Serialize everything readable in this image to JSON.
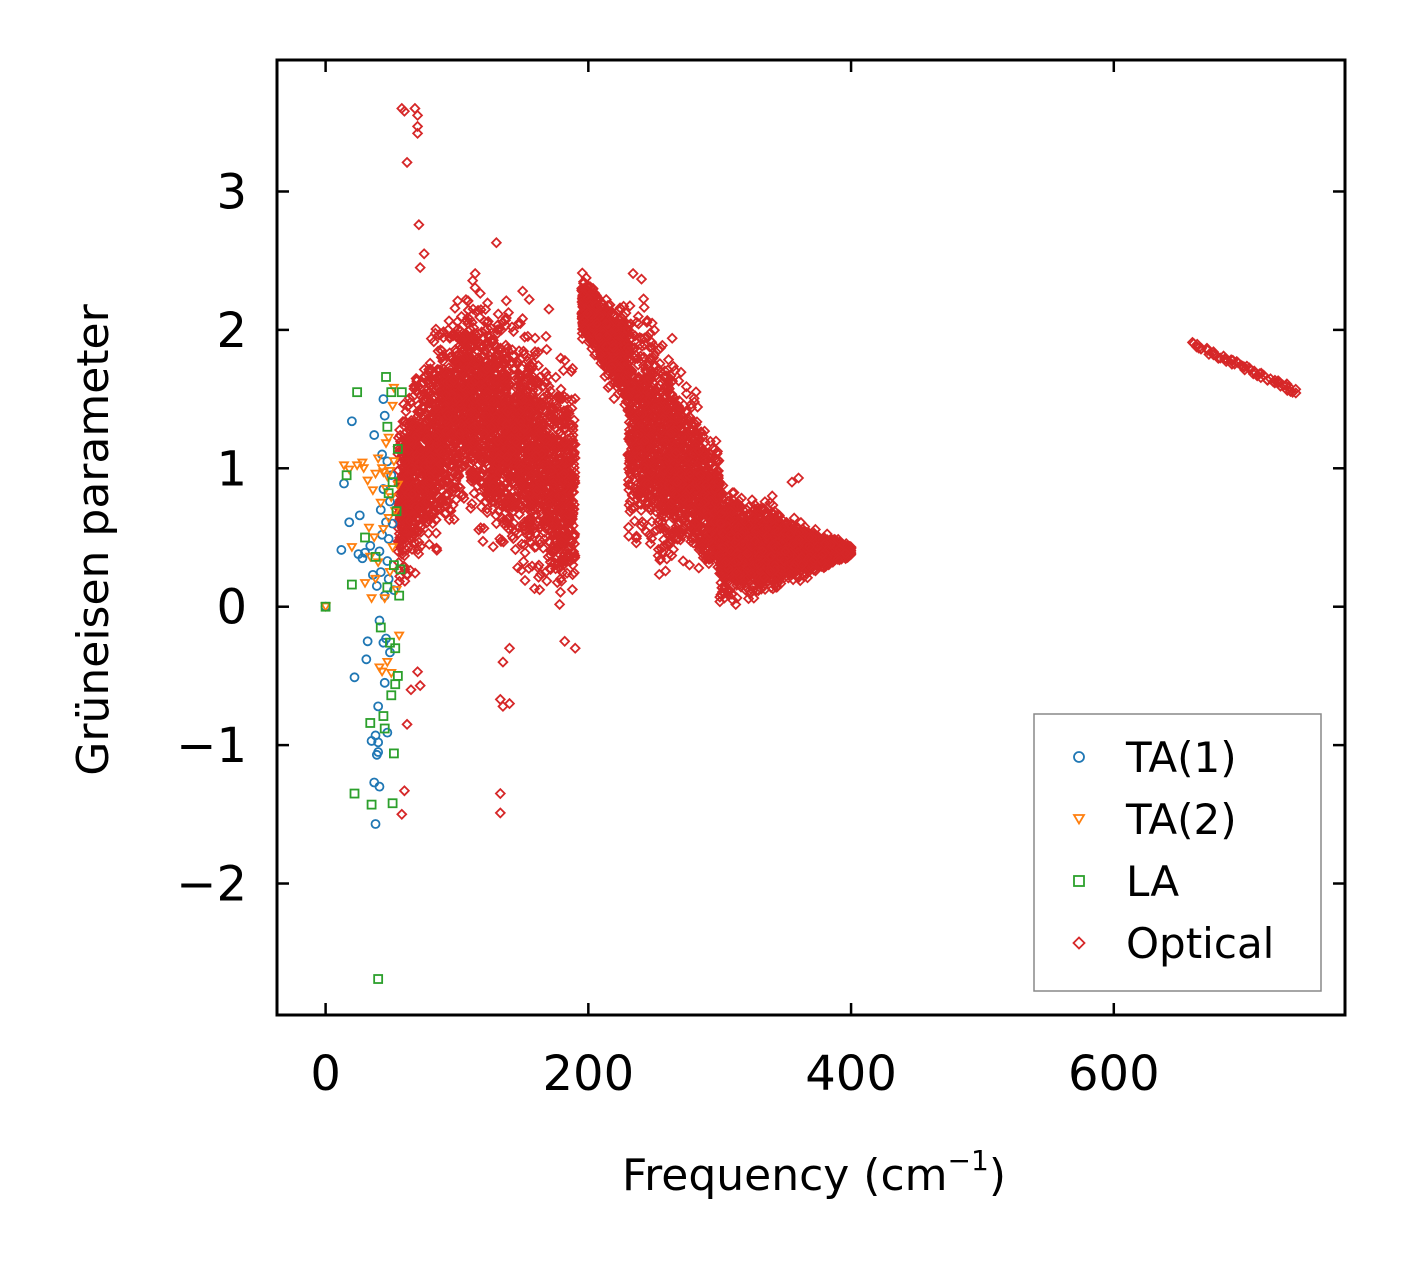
{
  "chart_data": {
    "type": "scatter",
    "title": "",
    "xlabel": "Frequency (cm",
    "xlabel_sup": "−1",
    "xlabel_close": ")",
    "ylabel": "Grüneisen parameter",
    "xlim": [
      -37,
      776
    ],
    "ylim": [
      -2.95,
      3.95
    ],
    "xticks": [
      0,
      200,
      400,
      600
    ],
    "xtick_labels": [
      "0",
      "200",
      "400",
      "600"
    ],
    "yticks": [
      -2,
      -1,
      0,
      1,
      2,
      3
    ],
    "ytick_labels": [
      "−2",
      "−1",
      "0",
      "1",
      "2",
      "3"
    ],
    "legend_position": "bottom-right",
    "series": [
      {
        "name": "TA(1)",
        "marker": "circle",
        "color": "#1f77b4",
        "points": [
          [
            0,
            0
          ],
          [
            12,
            0.41
          ],
          [
            14,
            0.89
          ],
          [
            18,
            0.61
          ],
          [
            20,
            1.34
          ],
          [
            22,
            -0.51
          ],
          [
            25,
            0.38
          ],
          [
            26,
            0.66
          ],
          [
            28,
            0.35
          ],
          [
            30,
            0.39
          ],
          [
            31,
            -0.38
          ],
          [
            32,
            -0.25
          ],
          [
            34,
            0.44
          ],
          [
            35,
            -0.97
          ],
          [
            36,
            0.23
          ],
          [
            37,
            1.24
          ],
          [
            37,
            -1.27
          ],
          [
            38,
            -1.57
          ],
          [
            38,
            -0.93
          ],
          [
            39,
            -1.07
          ],
          [
            39,
            0.15
          ],
          [
            40,
            -1.05
          ],
          [
            40,
            -0.98
          ],
          [
            40,
            -0.72
          ],
          [
            41,
            -1.3
          ],
          [
            41,
            0.4
          ],
          [
            41,
            -0.1
          ],
          [
            42,
            0.7
          ],
          [
            42,
            0.25
          ],
          [
            43,
            0.52
          ],
          [
            43,
            1.1
          ],
          [
            44,
            1.5
          ],
          [
            44,
            0.85
          ],
          [
            44,
            -0.26
          ],
          [
            45,
            1.38
          ],
          [
            45,
            0.08
          ],
          [
            45,
            -0.55
          ],
          [
            46,
            0.61
          ],
          [
            46,
            -0.23
          ],
          [
            47,
            1.05
          ],
          [
            47,
            0.33
          ],
          [
            47,
            -0.91
          ],
          [
            48,
            0.49
          ],
          [
            48,
            0.2
          ],
          [
            49,
            0.76
          ],
          [
            49,
            -0.33
          ],
          [
            50,
            0.95
          ],
          [
            51,
            0.6
          ],
          [
            52,
            0.12
          ]
        ]
      },
      {
        "name": "TA(2)",
        "marker": "triangle-down",
        "color": "#ff7f0e",
        "points": [
          [
            0,
            0
          ],
          [
            14,
            1.02
          ],
          [
            18,
            0.99
          ],
          [
            20,
            0.43
          ],
          [
            24,
            1.02
          ],
          [
            28,
            1.04
          ],
          [
            29,
            1.0
          ],
          [
            30,
            0.17
          ],
          [
            32,
            0.91
          ],
          [
            33,
            0.57
          ],
          [
            34,
            0.36
          ],
          [
            35,
            0.06
          ],
          [
            36,
            0.84
          ],
          [
            37,
            0.5
          ],
          [
            38,
            0.96
          ],
          [
            38,
            0.2
          ],
          [
            40,
            1.07
          ],
          [
            40,
            0.32
          ],
          [
            41,
            -0.44
          ],
          [
            42,
            0.75
          ],
          [
            43,
            1.0
          ],
          [
            43,
            -0.47
          ],
          [
            44,
            0.56
          ],
          [
            44,
            0.97
          ],
          [
            45,
            0.06
          ],
          [
            46,
            1.18
          ],
          [
            46,
            0.85
          ],
          [
            47,
            0.94
          ],
          [
            47,
            -0.4
          ],
          [
            48,
            1.22
          ],
          [
            48,
            0.64
          ],
          [
            49,
            0.98
          ],
          [
            49,
            0.25
          ],
          [
            50,
            0.79
          ],
          [
            50,
            -0.48
          ],
          [
            51,
            1.45
          ],
          [
            51,
            0.43
          ],
          [
            52,
            1.58
          ],
          [
            52,
            1.05
          ],
          [
            53,
            0.69
          ],
          [
            54,
            0.12
          ],
          [
            55,
            0.88
          ],
          [
            56,
            -0.21
          ]
        ]
      },
      {
        "name": "LA",
        "marker": "square",
        "color": "#2ca02c",
        "points": [
          [
            0,
            0
          ],
          [
            16,
            0.95
          ],
          [
            20,
            0.16
          ],
          [
            22,
            -1.35
          ],
          [
            24,
            1.55
          ],
          [
            30,
            0.5
          ],
          [
            34,
            -0.84
          ],
          [
            35,
            -1.43
          ],
          [
            38,
            0.36
          ],
          [
            40,
            -2.69
          ],
          [
            42,
            -0.15
          ],
          [
            44,
            -0.79
          ],
          [
            45,
            -0.88
          ],
          [
            46,
            1.66
          ],
          [
            47,
            0.14
          ],
          [
            48,
            0.82
          ],
          [
            49,
            -0.26
          ],
          [
            50,
            1.55
          ],
          [
            51,
            -1.42
          ],
          [
            52,
            -1.06
          ],
          [
            52,
            0.3
          ],
          [
            53,
            -0.56
          ],
          [
            54,
            0.69
          ],
          [
            55,
            1.14
          ],
          [
            56,
            0.08
          ],
          [
            57,
            0.27
          ],
          [
            58,
            1.55
          ],
          [
            50,
            -0.64
          ],
          [
            51,
            0.9
          ],
          [
            55,
            -0.5
          ],
          [
            47,
            1.3
          ],
          [
            53,
            -0.3
          ]
        ]
      },
      {
        "name": "Optical",
        "marker": "diamond",
        "color": "#d62728",
        "points": []
      }
    ],
    "optical_regions": [
      {
        "x_from": 55,
        "x_to": 110,
        "y_low": [
          -0.1,
          0.6
        ],
        "y_high": [
          1.6,
          2.6
        ]
      },
      {
        "x_from": 110,
        "x_to": 190,
        "y_low": [
          0.3,
          -0.2
        ],
        "y_high": [
          2.6,
          1.9
        ]
      },
      {
        "x_from": 195,
        "x_to": 230,
        "y_low": [
          1.9,
          1.3
        ],
        "y_high": [
          2.45,
          2.2
        ]
      },
      {
        "x_from": 230,
        "x_to": 300,
        "y_low": [
          0.2,
          0.1
        ],
        "y_high": [
          2.6,
          1.3
        ]
      },
      {
        "x_from": 300,
        "x_to": 400,
        "y_low": [
          -0.15,
          0.35
        ],
        "y_high": [
          1.0,
          0.45
        ]
      }
    ],
    "optical_outliers": [
      [
        58,
        3.6
      ],
      [
        60,
        3.58
      ],
      [
        62,
        3.21
      ],
      [
        68,
        3.6
      ],
      [
        70,
        3.55
      ],
      [
        70,
        3.47
      ],
      [
        70,
        3.42
      ],
      [
        71,
        2.76
      ],
      [
        72,
        2.45
      ],
      [
        75,
        2.55
      ],
      [
        130,
        2.63
      ],
      [
        150,
        2.28
      ],
      [
        155,
        2.22
      ],
      [
        170,
        2.15
      ],
      [
        133,
        -0.67
      ],
      [
        135,
        -0.72
      ],
      [
        140,
        -0.7
      ],
      [
        133,
        -1.35
      ],
      [
        133,
        -1.49
      ],
      [
        60,
        -1.33
      ],
      [
        58,
        -1.5
      ],
      [
        62,
        -0.85
      ],
      [
        65,
        -0.6
      ],
      [
        70,
        -0.47
      ],
      [
        72,
        -0.57
      ],
      [
        135,
        -0.4
      ],
      [
        140,
        -0.3
      ],
      [
        182,
        -0.25
      ],
      [
        190,
        -0.3
      ],
      [
        340,
        0.8
      ],
      [
        345,
        0.65
      ],
      [
        355,
        0.9
      ],
      [
        360,
        0.93
      ],
      [
        350,
        0.4
      ],
      [
        368,
        0.5
      ]
    ],
    "optical_line_segment": {
      "x": [
        660,
        740
      ],
      "y": [
        1.9,
        1.55
      ]
    }
  }
}
